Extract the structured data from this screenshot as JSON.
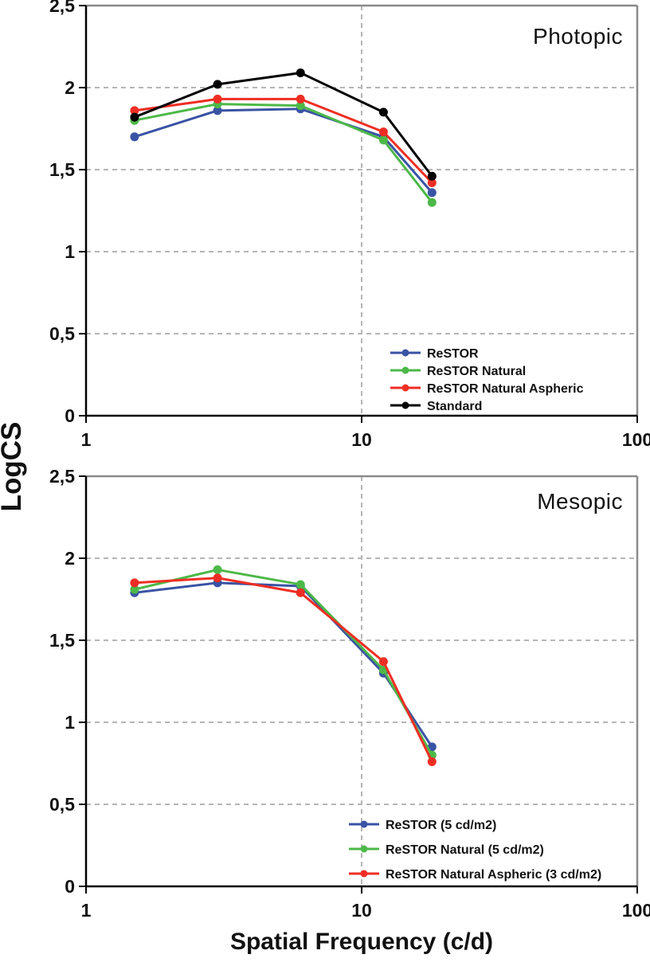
{
  "figure": {
    "y_axis_title": "LogCS",
    "x_axis_title": "Spatial Frequency (c/d)"
  },
  "palette": {
    "blue": "#3953a4",
    "green": "#4db848",
    "red": "#ee2e24",
    "black": "#000000",
    "grid_gray": "#b5b5b5",
    "border_gray": "#8a8a8a",
    "axis_black": "#111111"
  },
  "chart_data": [
    {
      "type": "line",
      "title": "Photopic",
      "xscale": "log",
      "xlim": [
        1,
        100
      ],
      "ylim": [
        0,
        2.5
      ],
      "x": [
        1.5,
        3,
        6,
        12,
        18
      ],
      "xticks": [
        {
          "v": 1,
          "label": "1"
        },
        {
          "v": 10,
          "label": "10"
        },
        {
          "v": 100,
          "label": "100"
        }
      ],
      "yticks": [
        {
          "v": 2.5,
          "label": "2,5"
        },
        {
          "v": 2,
          "label": "2"
        },
        {
          "v": 1.5,
          "label": "1,5"
        },
        {
          "v": 1,
          "label": "1"
        },
        {
          "v": 0.5,
          "label": "0,5"
        },
        {
          "v": 0,
          "label": "0"
        }
      ],
      "grid": {
        "horizontal_step": 0.5,
        "vertical_at": [
          10
        ],
        "style": "dashed"
      },
      "legend_position": "inside lower center-right, no frame",
      "series": [
        {
          "name": "ReSTOR",
          "color": "#3953a4",
          "values": [
            1.7,
            1.86,
            1.87,
            1.7,
            1.36
          ]
        },
        {
          "name": "ReSTOR Natural",
          "color": "#4db848",
          "values": [
            1.8,
            1.9,
            1.89,
            1.68,
            1.3
          ]
        },
        {
          "name": "ReSTOR Natural Aspheric",
          "color": "#ee2e24",
          "values": [
            1.86,
            1.93,
            1.93,
            1.73,
            1.42
          ]
        },
        {
          "name": "Standard",
          "color": "#000000",
          "values": [
            1.82,
            2.02,
            2.09,
            1.85,
            1.46
          ]
        }
      ]
    },
    {
      "type": "line",
      "title": "Mesopic",
      "xscale": "log",
      "xlim": [
        1,
        100
      ],
      "ylim": [
        0,
        2.5
      ],
      "x": [
        1.5,
        3,
        6,
        12,
        18
      ],
      "xticks": [
        {
          "v": 1,
          "label": "1"
        },
        {
          "v": 10,
          "label": "10"
        },
        {
          "v": 100,
          "label": "100"
        }
      ],
      "yticks": [
        {
          "v": 2.5,
          "label": "2,5"
        },
        {
          "v": 2,
          "label": "2"
        },
        {
          "v": 1.5,
          "label": "1,5"
        },
        {
          "v": 1,
          "label": "1"
        },
        {
          "v": 0.5,
          "label": "0,5"
        },
        {
          "v": 0,
          "label": "0"
        }
      ],
      "grid": {
        "horizontal_step": 0.5,
        "vertical_at": [
          10
        ],
        "style": "dashed"
      },
      "legend_position": "inside lower center-right, no frame",
      "series": [
        {
          "name": "ReSTOR (5 cd/m2)",
          "color": "#3953a4",
          "values": [
            1.79,
            1.85,
            1.83,
            1.3,
            0.85
          ]
        },
        {
          "name": "ReSTOR Natural (5 cd/m2)",
          "color": "#4db848",
          "values": [
            1.81,
            1.93,
            1.84,
            1.32,
            0.8
          ]
        },
        {
          "name": "ReSTOR Natural Aspheric (3 cd/m2)",
          "color": "#ee2e24",
          "values": [
            1.85,
            1.88,
            1.79,
            1.37,
            0.76
          ]
        }
      ]
    }
  ]
}
